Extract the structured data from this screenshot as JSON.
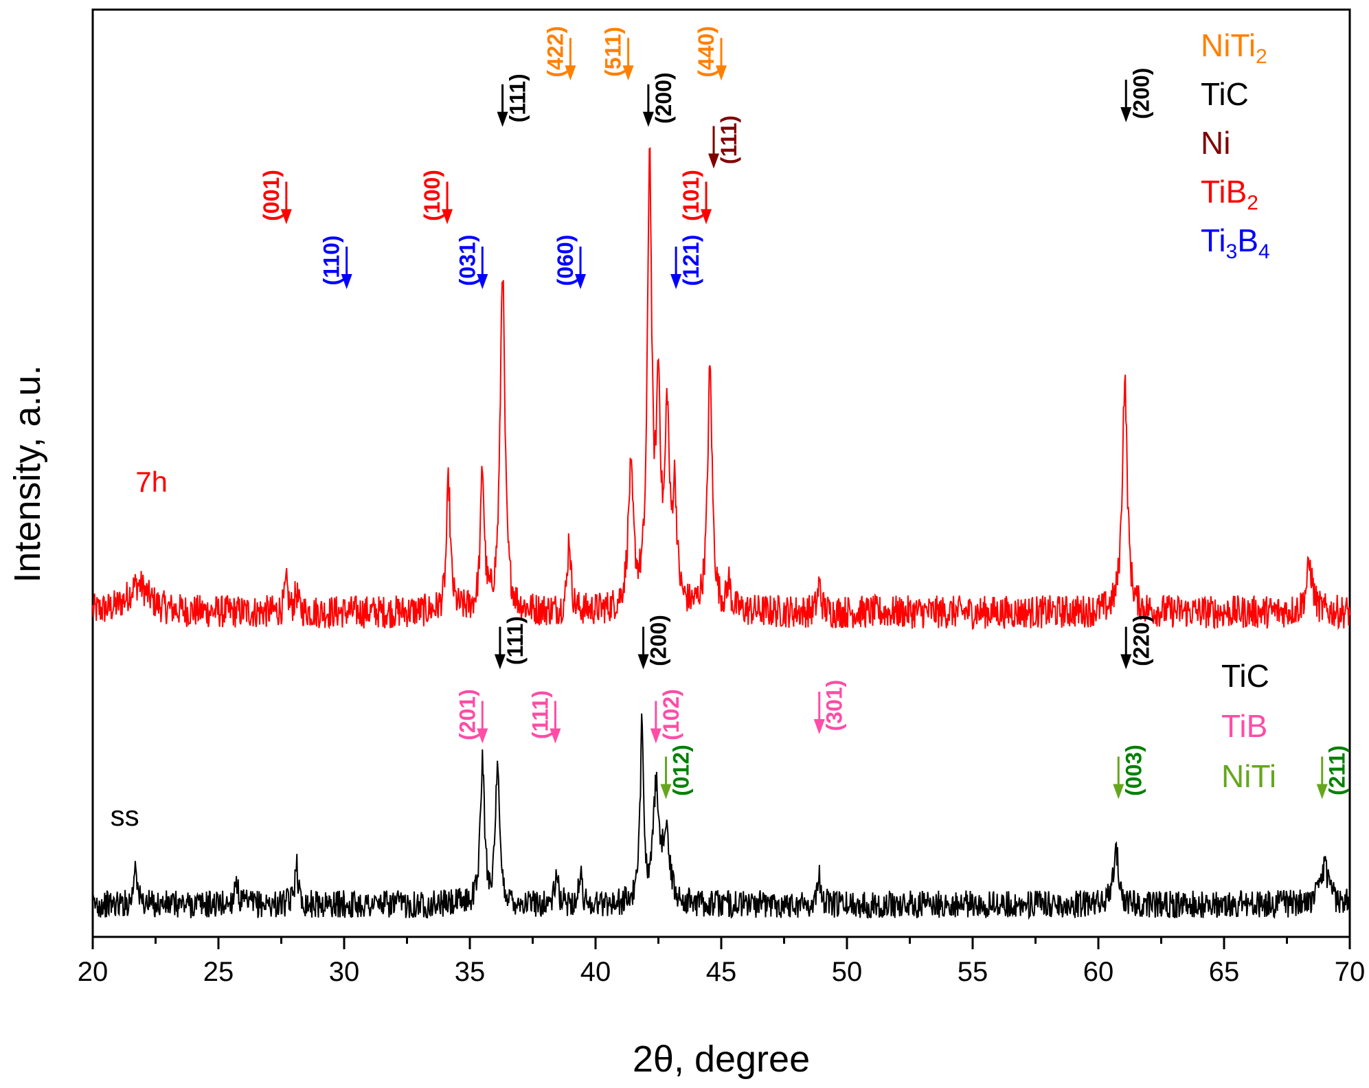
{
  "chart_data": {
    "type": "line",
    "xlabel": "2θ, degree",
    "ylabel": "Intensity, a.u.",
    "xlim": [
      20,
      70
    ],
    "x_ticks": [
      20,
      25,
      30,
      35,
      40,
      45,
      50,
      55,
      60,
      65,
      70
    ],
    "ylim": [
      0,
      1
    ],
    "grid": false,
    "colors": {
      "NiTi2": "#ff8000",
      "TiC": "#000000",
      "Ni": "#800000",
      "TiB2": "#ff0000",
      "Ti3B4": "#0000ff",
      "TiB": "#ff4ca6",
      "NiTi": "#66a61e",
      "NiTi_hkl": "#008000"
    },
    "series": [
      {
        "name": "7h",
        "color": "#ff0000",
        "baseline": 0.35,
        "noise": 0.018,
        "peaks": [
          {
            "x": 21.8,
            "h": 0.03,
            "w": 0.5
          },
          {
            "x": 27.7,
            "h": 0.03,
            "w": 0.08
          },
          {
            "x": 28.1,
            "h": 0.02,
            "w": 0.08
          },
          {
            "x": 34.15,
            "h": 0.14,
            "w": 0.09
          },
          {
            "x": 35.5,
            "h": 0.15,
            "w": 0.09
          },
          {
            "x": 36.3,
            "h": 0.37,
            "w": 0.11
          },
          {
            "x": 38.95,
            "h": 0.08,
            "w": 0.08
          },
          {
            "x": 41.4,
            "h": 0.14,
            "w": 0.13
          },
          {
            "x": 42.15,
            "h": 0.48,
            "w": 0.1
          },
          {
            "x": 42.5,
            "h": 0.22,
            "w": 0.1
          },
          {
            "x": 42.85,
            "h": 0.2,
            "w": 0.1
          },
          {
            "x": 43.15,
            "h": 0.12,
            "w": 0.1
          },
          {
            "x": 44.55,
            "h": 0.26,
            "w": 0.11
          },
          {
            "x": 45.3,
            "h": 0.03,
            "w": 0.08
          },
          {
            "x": 48.9,
            "h": 0.03,
            "w": 0.08
          },
          {
            "x": 61.05,
            "h": 0.25,
            "w": 0.12
          },
          {
            "x": 68.4,
            "h": 0.05,
            "w": 0.15
          }
        ]
      },
      {
        "name": "ss",
        "color": "#000000",
        "baseline": 0.035,
        "noise": 0.015,
        "peaks": [
          {
            "x": 21.7,
            "h": 0.05,
            "w": 0.07
          },
          {
            "x": 25.7,
            "h": 0.03,
            "w": 0.07
          },
          {
            "x": 28.1,
            "h": 0.05,
            "w": 0.07
          },
          {
            "x": 35.5,
            "h": 0.15,
            "w": 0.1
          },
          {
            "x": 36.1,
            "h": 0.14,
            "w": 0.1
          },
          {
            "x": 38.45,
            "h": 0.03,
            "w": 0.08
          },
          {
            "x": 39.4,
            "h": 0.03,
            "w": 0.08
          },
          {
            "x": 41.85,
            "h": 0.2,
            "w": 0.08
          },
          {
            "x": 42.4,
            "h": 0.12,
            "w": 0.12
          },
          {
            "x": 42.8,
            "h": 0.08,
            "w": 0.15
          },
          {
            "x": 48.9,
            "h": 0.03,
            "w": 0.08
          },
          {
            "x": 60.7,
            "h": 0.06,
            "w": 0.12
          },
          {
            "x": 69.0,
            "h": 0.04,
            "w": 0.2
          }
        ]
      }
    ],
    "series_labels": [
      {
        "text": "7h",
        "color": "#ff0000",
        "x": 21.7,
        "y": 0.48
      },
      {
        "text": "ss",
        "color": "#000000",
        "x": 20.7,
        "y": 0.12
      }
    ],
    "annotations": [
      {
        "hkl": "(422)",
        "x": 39.0,
        "y": 0.925,
        "phase": "NiTi2",
        "side": "left"
      },
      {
        "hkl": "(511)",
        "x": 41.3,
        "y": 0.925,
        "phase": "NiTi2",
        "side": "left"
      },
      {
        "hkl": "(440)",
        "x": 45.0,
        "y": 0.925,
        "phase": "NiTi2",
        "side": "left"
      },
      {
        "hkl": "(111)",
        "x": 36.3,
        "y": 0.875,
        "phase": "TiC",
        "side": "right"
      },
      {
        "hkl": "(200)",
        "x": 42.1,
        "y": 0.875,
        "phase": "TiC",
        "side": "right"
      },
      {
        "hkl": "(200)",
        "x": 61.1,
        "y": 0.88,
        "phase": "TiC",
        "side": "right"
      },
      {
        "hkl": "(111)",
        "x": 44.7,
        "y": 0.83,
        "phase": "Ni",
        "side": "right"
      },
      {
        "hkl": "(001)",
        "x": 27.7,
        "y": 0.77,
        "phase": "TiB2",
        "side": "left"
      },
      {
        "hkl": "(100)",
        "x": 34.1,
        "y": 0.77,
        "phase": "TiB2",
        "side": "left"
      },
      {
        "hkl": "(101)",
        "x": 44.4,
        "y": 0.77,
        "phase": "TiB2",
        "side": "left"
      },
      {
        "hkl": "(110)",
        "x": 30.1,
        "y": 0.7,
        "phase": "Ti3B4",
        "side": "left"
      },
      {
        "hkl": "(031)",
        "x": 35.5,
        "y": 0.7,
        "phase": "Ti3B4",
        "side": "left"
      },
      {
        "hkl": "(060)",
        "x": 39.4,
        "y": 0.7,
        "phase": "Ti3B4",
        "side": "left"
      },
      {
        "hkl": "(121)",
        "x": 43.2,
        "y": 0.7,
        "phase": "Ti3B4",
        "side": "right"
      },
      {
        "hkl": "(111)",
        "x": 36.2,
        "y": 0.29,
        "phase": "TiC",
        "side": "right"
      },
      {
        "hkl": "(200)",
        "x": 41.9,
        "y": 0.29,
        "phase": "TiC",
        "side": "right"
      },
      {
        "hkl": "(220)",
        "x": 61.1,
        "y": 0.29,
        "phase": "TiC",
        "side": "right"
      },
      {
        "hkl": "(201)",
        "x": 35.5,
        "y": 0.21,
        "phase": "TiB",
        "side": "left"
      },
      {
        "hkl": "(111)",
        "x": 38.4,
        "y": 0.21,
        "phase": "TiB",
        "side": "left"
      },
      {
        "hkl": "(102)",
        "x": 42.4,
        "y": 0.21,
        "phase": "TiB",
        "side": "right"
      },
      {
        "hkl": "(301)",
        "x": 48.9,
        "y": 0.22,
        "phase": "TiB",
        "side": "right"
      },
      {
        "hkl": "(012)",
        "x": 42.8,
        "y": 0.15,
        "phase": "NiTi",
        "side": "right"
      },
      {
        "hkl": "(003)",
        "x": 60.8,
        "y": 0.15,
        "phase": "NiTi",
        "side": "right"
      },
      {
        "hkl": "(211)",
        "x": 68.9,
        "y": 0.15,
        "phase": "NiTi",
        "side": "right"
      }
    ],
    "legend_top": {
      "placement": "top-right",
      "entries": [
        {
          "label": "NiTi",
          "sub": "2",
          "suffix": "",
          "color": "#ff8000"
        },
        {
          "label": "TiC",
          "sub": "",
          "suffix": "",
          "color": "#000000"
        },
        {
          "label": "Ni",
          "sub": "",
          "suffix": "",
          "color": "#800000"
        },
        {
          "label": "TiB",
          "sub": "2",
          "suffix": "",
          "color": "#ff0000"
        },
        {
          "label": "Ti",
          "sub": "3",
          "suffix": "B",
          "sub2": "4",
          "color": "#0000ff"
        }
      ]
    },
    "legend_bottom": {
      "placement": "right",
      "entries": [
        {
          "label": "TiC",
          "sub": "",
          "suffix": "",
          "color": "#000000"
        },
        {
          "label": "TiB",
          "sub": "",
          "suffix": "",
          "color": "#ff4ca6"
        },
        {
          "label": "NiTi",
          "sub": "",
          "suffix": "",
          "color": "#66a61e"
        }
      ]
    }
  }
}
